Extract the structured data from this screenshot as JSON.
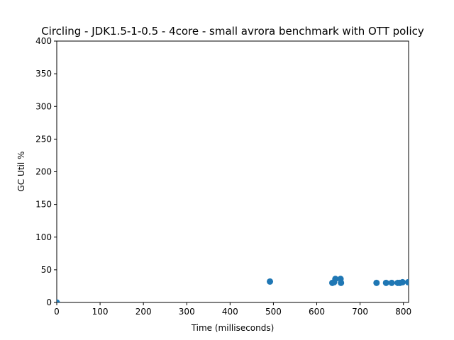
{
  "chart_data": {
    "type": "scatter",
    "title": "Circling - JDK1.5-1-0.5 - 4core -  small avrora benchmark with OTT policy",
    "xlabel": "Time (milliseconds)",
    "ylabel": "GC Util %",
    "xlim": [
      0,
      812
    ],
    "ylim": [
      0,
      400
    ],
    "xticks": [
      0,
      100,
      200,
      300,
      400,
      500,
      600,
      700,
      800
    ],
    "yticks": [
      0,
      50,
      100,
      150,
      200,
      250,
      300,
      350,
      400
    ],
    "grid": false,
    "marker_color": "#1f77b4",
    "points": [
      {
        "x": 0,
        "y": 0
      },
      {
        "x": 492,
        "y": 32
      },
      {
        "x": 636,
        "y": 30
      },
      {
        "x": 640,
        "y": 31
      },
      {
        "x": 643,
        "y": 36
      },
      {
        "x": 655,
        "y": 36
      },
      {
        "x": 656,
        "y": 30
      },
      {
        "x": 738,
        "y": 30
      },
      {
        "x": 760,
        "y": 30
      },
      {
        "x": 773,
        "y": 30
      },
      {
        "x": 787,
        "y": 30
      },
      {
        "x": 792,
        "y": 30
      },
      {
        "x": 798,
        "y": 31
      },
      {
        "x": 811,
        "y": 31
      }
    ]
  }
}
